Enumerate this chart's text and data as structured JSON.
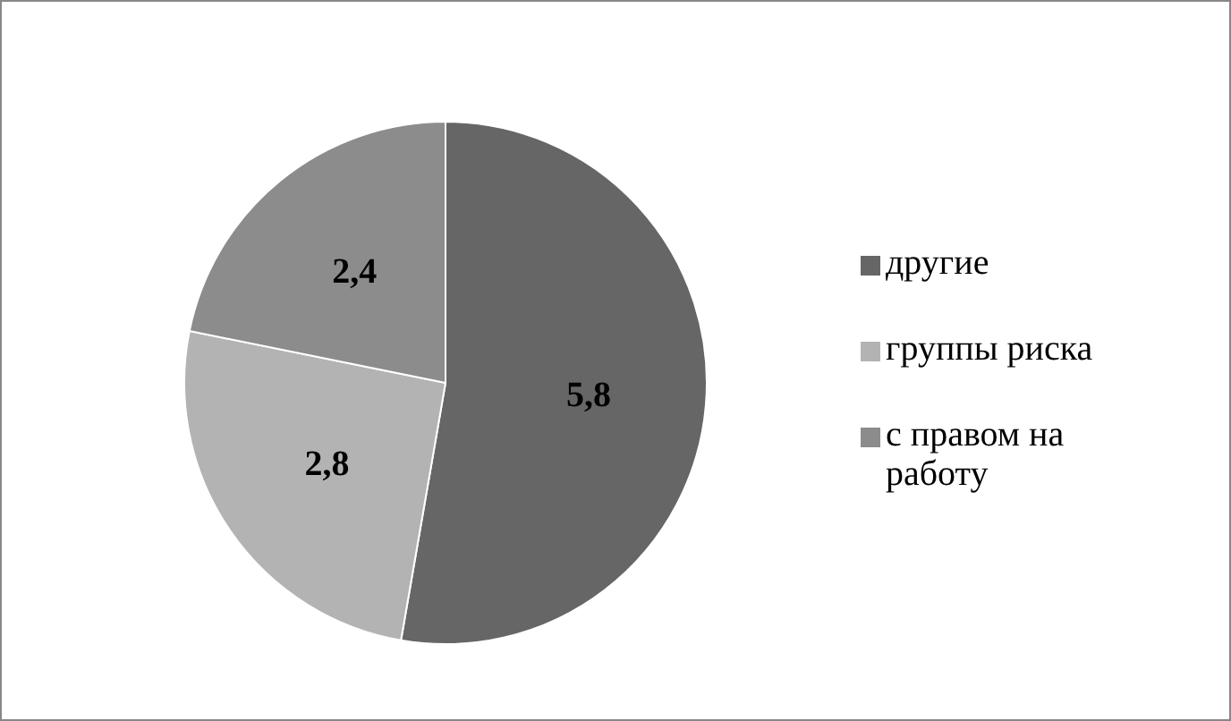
{
  "chart_data": {
    "type": "pie",
    "categories": [
      "другие",
      "группы риска",
      "с правом на работу"
    ],
    "values": [
      5.8,
      2.8,
      2.4
    ],
    "colors": [
      "#666666",
      "#b3b3b3",
      "#8c8c8c"
    ],
    "value_labels": [
      "5,8",
      "2,8",
      "2,4"
    ],
    "legend": "right"
  }
}
